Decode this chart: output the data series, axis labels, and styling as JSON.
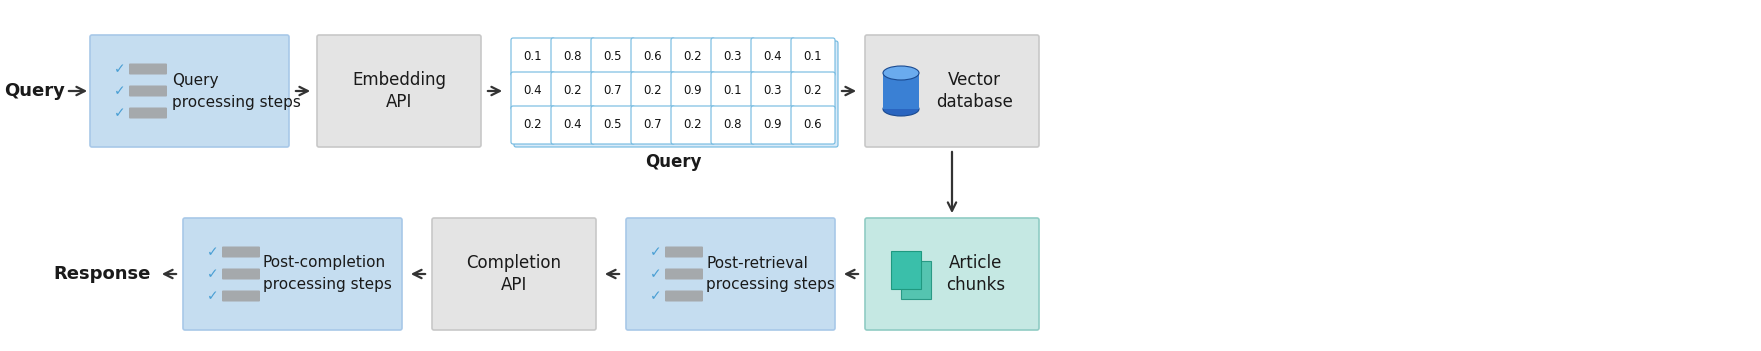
{
  "bg_color": "#ffffff",
  "light_blue_box": "#c5ddf0",
  "light_gray_box": "#e4e4e4",
  "light_teal_box": "#c5e8e3",
  "blue_border": "#a8c8e8",
  "gray_border": "#c8c8c8",
  "teal_border": "#90ccc4",
  "text_color": "#1a1a1a",
  "check_color": "#4a9fd4",
  "line_color": "#a0a0a0",
  "vector_cell_border": "#70b8e0",
  "vector_bg": "#ffffff",
  "vector_numbers": [
    [
      "0.1",
      "0.8",
      "0.5",
      "0.6",
      "0.2",
      "0.3",
      "0.4",
      "0.1"
    ],
    [
      "0.4",
      "0.2",
      "0.7",
      "0.2",
      "0.9",
      "0.1",
      "0.3",
      "0.2"
    ],
    [
      "0.2",
      "0.4",
      "0.5",
      "0.7",
      "0.2",
      "0.8",
      "0.9",
      "0.6"
    ]
  ],
  "arrow_color": "#333333",
  "fig_width": 17.61,
  "fig_height": 3.51,
  "dpi": 100
}
